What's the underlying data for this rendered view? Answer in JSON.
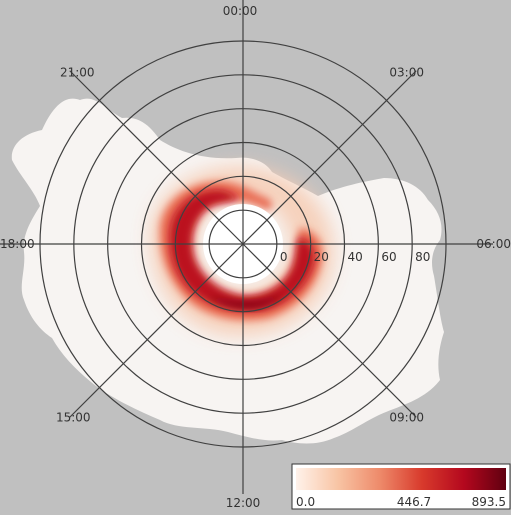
{
  "chart_data": {
    "type": "heatmap",
    "projection": "polar",
    "time_labels": [
      {
        "label": "00:00",
        "angle_deg": 0
      },
      {
        "label": "03:00",
        "angle_deg": 45
      },
      {
        "label": "06:00",
        "angle_deg": 90
      },
      {
        "label": "09:00",
        "angle_deg": 135
      },
      {
        "label": "12:00",
        "angle_deg": 180
      },
      {
        "label": "15:00",
        "angle_deg": 225
      },
      {
        "label": "18:00",
        "angle_deg": 270
      },
      {
        "label": "21:00",
        "angle_deg": 315
      }
    ],
    "radial_ticks": [
      "0",
      "20",
      "40",
      "60",
      "80"
    ],
    "radial_tick_values": [
      0,
      20,
      40,
      60,
      80
    ],
    "radial_range": [
      -20,
      100
    ],
    "colorbar": {
      "labels": [
        "0.0",
        "446.7",
        "893.5"
      ],
      "min": 0.0,
      "max": 893.5,
      "colors": [
        "#fff2ea",
        "#f8c4a4",
        "#ee8a6a",
        "#d83a2c",
        "#b4081e",
        "#600010"
      ]
    },
    "background_color": "#c0c0c0",
    "grid": true
  }
}
